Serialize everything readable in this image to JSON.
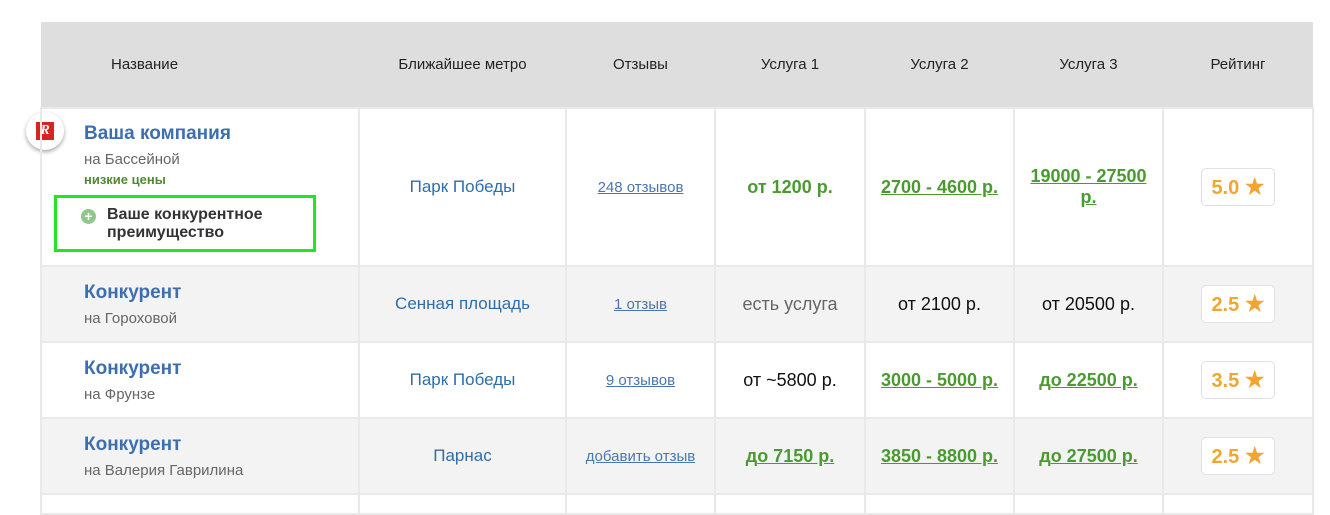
{
  "headers": [
    "Название",
    "Ближайшее метро",
    "Отзывы",
    "Услуга 1",
    "Услуга 2",
    "Услуга 3",
    "Рейтинг"
  ],
  "logo_text": "R",
  "rows": [
    {
      "name": "Ваша компания",
      "address": "на Бассейной",
      "tag": "низкие цены",
      "advantage": "Ваше конкурентное преимущество",
      "metro": "Парк Победы",
      "reviews": "248 отзывов",
      "s1": {
        "style": "green",
        "prefix": "",
        "text": "от 1200 р."
      },
      "s2": {
        "style": "green-link",
        "prefix": "",
        "text": "2700 - 4600 р."
      },
      "s3": {
        "style": "green-link",
        "prefix": "",
        "text": "19000 - 27500 р."
      },
      "rating": "5.0"
    },
    {
      "name": "Конкурент",
      "address": "на Гороховой",
      "metro": "Сенная площадь",
      "reviews": "1 отзыв",
      "s1": {
        "style": "muted",
        "prefix": "",
        "text": "есть услуга"
      },
      "s2": {
        "style": "black",
        "prefix": "",
        "text": "от 2100 р."
      },
      "s3": {
        "style": "black",
        "prefix": "",
        "text": "от 20500 р."
      },
      "rating": "2.5"
    },
    {
      "name": "Конкурент",
      "address": "на Фрунзе",
      "metro": "Парк Победы",
      "reviews": "9 отзывов",
      "s1": {
        "style": "black",
        "prefix": "",
        "text": "от ~5800 р."
      },
      "s2": {
        "style": "green-link",
        "prefix": "",
        "text": "3000 - 5000 р."
      },
      "s3": {
        "style": "green-link",
        "prefix": "д",
        "text": "о 22500 р."
      },
      "rating": "3.5"
    },
    {
      "name": "Конкурент",
      "address": "на Валерия Гаврилина",
      "metro": "Парнас",
      "reviews": "добавить отзыв",
      "s1": {
        "style": "green-link",
        "prefix": "д",
        "text": "о 7150 р."
      },
      "s2": {
        "style": "green-link",
        "prefix": "",
        "text": "3850 - 8800 р."
      },
      "s3": {
        "style": "green-link",
        "prefix": "д",
        "text": "о 27500 р."
      },
      "rating": "2.5"
    }
  ],
  "star_icon": "star-icon",
  "colors": {
    "accent_green": "#4a9a31",
    "highlight_border": "#22e622",
    "rating": "#f2a531",
    "link": "#3d6fb0"
  }
}
